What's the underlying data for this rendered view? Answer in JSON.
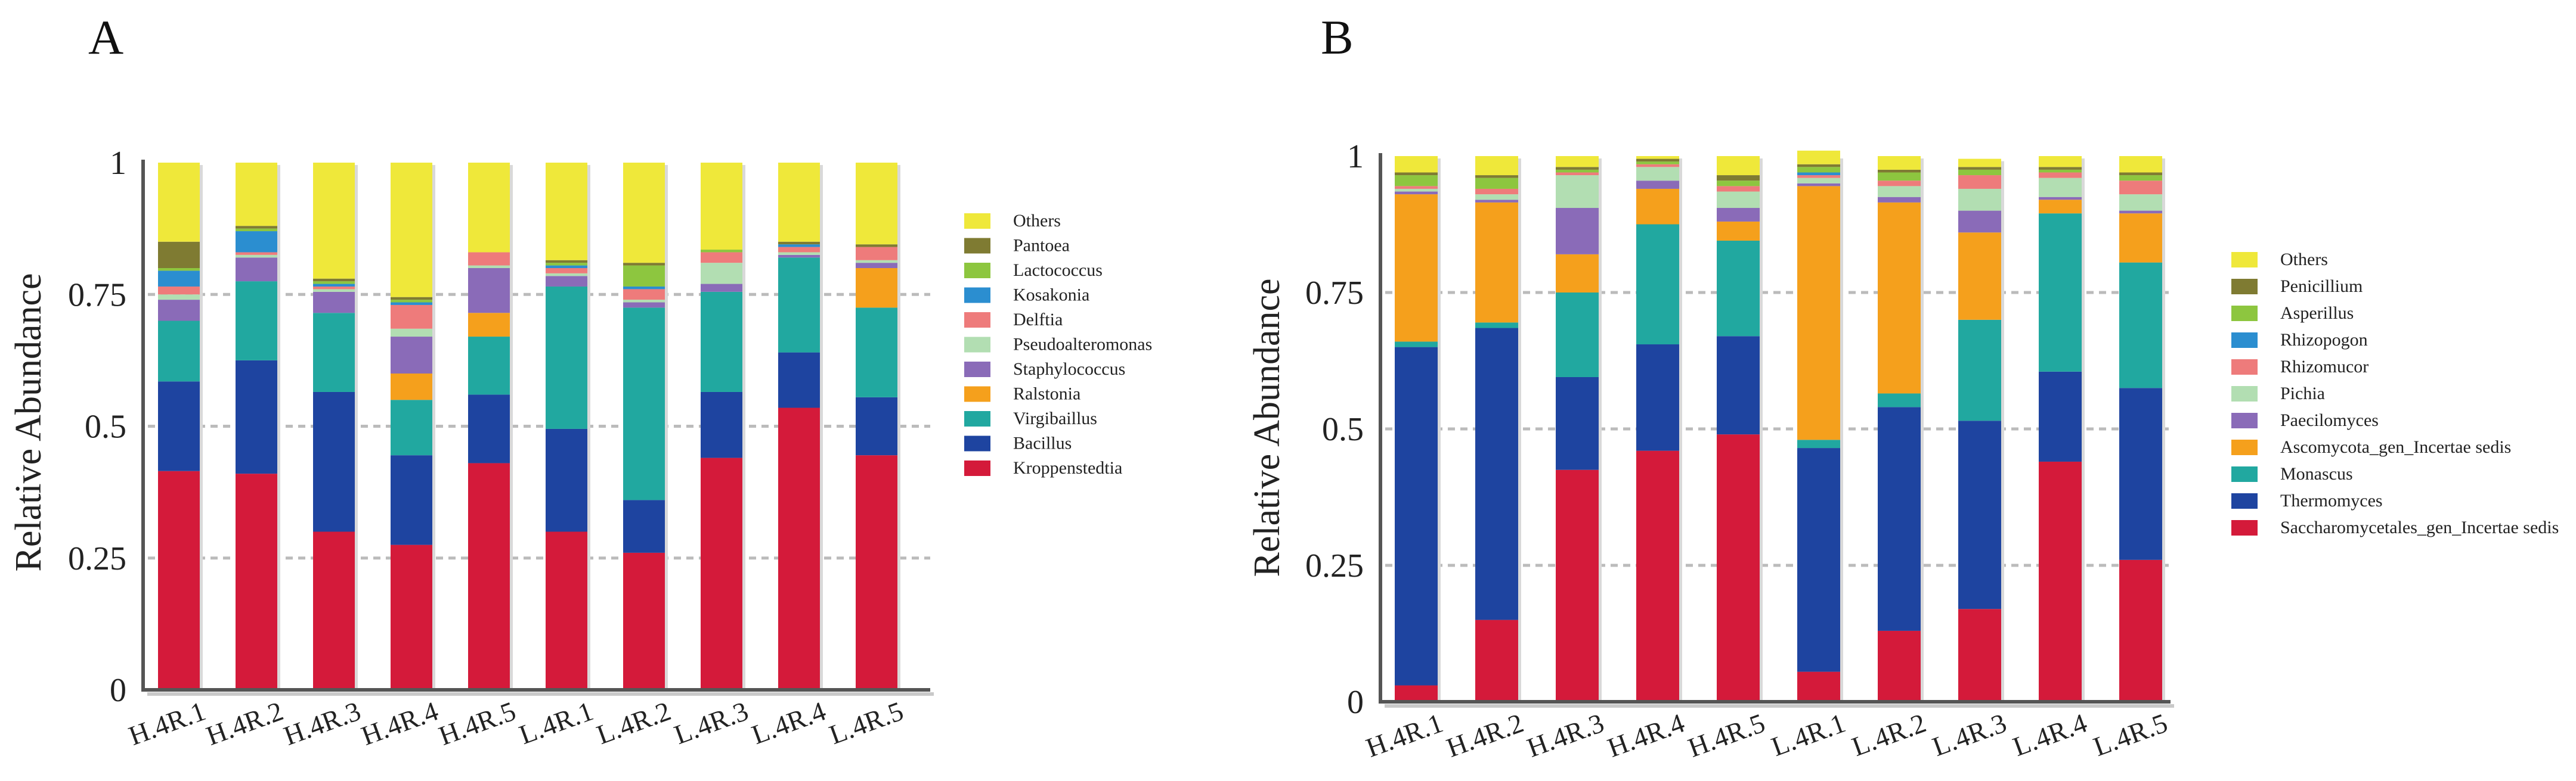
{
  "chart_data": [
    {
      "panel": "A",
      "type": "bar",
      "stacked": true,
      "ylabel": "Relative Abundance",
      "ylim": [
        0,
        1
      ],
      "yticks": [
        "0",
        "0.25",
        "0.5",
        "0.75",
        "1"
      ],
      "grid": "dashed horizontal",
      "legend_position": "right",
      "categories": [
        "H.4R.1",
        "H.4R.2",
        "H.4R.3",
        "H.4R.4",
        "H.4R.5",
        "L.4R.1",
        "L.4R.2",
        "L.4R.3",
        "L.4R.4",
        "L.4R.5"
      ],
      "series": [
        {
          "name": "Kroppenstedtia",
          "color": "#D41A3A",
          "values": [
            0.415,
            0.41,
            0.3,
            0.275,
            0.43,
            0.3,
            0.26,
            0.44,
            0.535,
            0.445
          ]
        },
        {
          "name": "Bacillus",
          "color": "#1E44A0",
          "values": [
            0.17,
            0.215,
            0.265,
            0.17,
            0.13,
            0.195,
            0.1,
            0.125,
            0.105,
            0.11
          ]
        },
        {
          "name": "Virgibaillus",
          "color": "#21A8A0",
          "values": [
            0.115,
            0.15,
            0.15,
            0.105,
            0.11,
            0.27,
            0.365,
            0.19,
            0.18,
            0.17
          ]
        },
        {
          "name": "Ralstonia",
          "color": "#F5A01C",
          "values": [
            0.0,
            0.0,
            0.0,
            0.05,
            0.045,
            0.0,
            0.0,
            0.0,
            0.0,
            0.075
          ]
        },
        {
          "name": "Staphylococcus",
          "color": "#8A6BB8",
          "values": [
            0.04,
            0.045,
            0.04,
            0.07,
            0.085,
            0.02,
            0.01,
            0.015,
            0.005,
            0.01
          ]
        },
        {
          "name": "Pseudoalteromonas",
          "color": "#B2DEB2",
          "values": [
            0.01,
            0.005,
            0.005,
            0.015,
            0.005,
            0.005,
            0.005,
            0.04,
            0.005,
            0.005
          ]
        },
        {
          "name": "Delftia",
          "color": "#EE7B7B",
          "values": [
            0.015,
            0.005,
            0.005,
            0.045,
            0.025,
            0.01,
            0.02,
            0.02,
            0.01,
            0.025
          ]
        },
        {
          "name": "Kosakonia",
          "color": "#2B8ED0",
          "values": [
            0.03,
            0.04,
            0.005,
            0.005,
            0.0,
            0.005,
            0.005,
            0.0,
            0.005,
            0.0
          ]
        },
        {
          "name": "Lactococcus",
          "color": "#8DC63F",
          "values": [
            0.005,
            0.005,
            0.005,
            0.005,
            0.0,
            0.005,
            0.04,
            0.005,
            0.0,
            0.0
          ]
        },
        {
          "name": "Pantoea",
          "color": "#7F7B32",
          "values": [
            0.05,
            0.005,
            0.005,
            0.005,
            0.0,
            0.005,
            0.005,
            0.0,
            0.005,
            0.005
          ]
        },
        {
          "name": "Others",
          "color": "#EFE83A",
          "values": [
            0.15,
            0.12,
            0.22,
            0.255,
            0.17,
            0.185,
            0.19,
            0.165,
            0.15,
            0.155
          ]
        }
      ]
    },
    {
      "panel": "B",
      "type": "bar",
      "stacked": true,
      "ylabel": "Relative Abundance",
      "ylim": [
        0,
        1
      ],
      "yticks": [
        "0",
        "0.25",
        "0.5",
        "0.75",
        "1"
      ],
      "grid": "dashed horizontal",
      "legend_position": "right",
      "categories": [
        "H.4R.1",
        "H.4R.2",
        "H.4R.3",
        "H.4R.4",
        "H.4R.5",
        "L.4R.1",
        "L.4R.2",
        "L.4R.3",
        "L.4R.4",
        "L.4R.5"
      ],
      "series": [
        {
          "name": "Saccharomycetales_gen_Incertae sedis",
          "color": "#D41A3A",
          "values": [
            0.03,
            0.15,
            0.425,
            0.46,
            0.49,
            0.055,
            0.13,
            0.17,
            0.44,
            0.26
          ]
        },
        {
          "name": "Thermomyces",
          "color": "#1E44A0",
          "values": [
            0.62,
            0.535,
            0.17,
            0.195,
            0.18,
            0.41,
            0.41,
            0.345,
            0.165,
            0.315
          ]
        },
        {
          "name": "Monascus",
          "color": "#21A8A0",
          "values": [
            0.01,
            0.01,
            0.155,
            0.22,
            0.175,
            0.015,
            0.025,
            0.185,
            0.29,
            0.23
          ]
        },
        {
          "name": "Ascomycota_gen_Incertae sedis",
          "color": "#F5A01C",
          "values": [
            0.27,
            0.22,
            0.07,
            0.065,
            0.035,
            0.465,
            0.35,
            0.16,
            0.025,
            0.09
          ]
        },
        {
          "name": "Paecilomyces",
          "color": "#8A6BB8",
          "values": [
            0.005,
            0.005,
            0.085,
            0.015,
            0.025,
            0.005,
            0.01,
            0.04,
            0.005,
            0.005
          ]
        },
        {
          "name": "Pichia",
          "color": "#B2DEB2",
          "values": [
            0.005,
            0.01,
            0.06,
            0.025,
            0.03,
            0.01,
            0.02,
            0.04,
            0.035,
            0.03
          ]
        },
        {
          "name": "Rhizomucor",
          "color": "#EE7B7B",
          "values": [
            0.005,
            0.01,
            0.005,
            0.005,
            0.01,
            0.005,
            0.01,
            0.025,
            0.01,
            0.025
          ]
        },
        {
          "name": "Rhizopogon",
          "color": "#2B8ED0",
          "values": [
            0.0,
            0.0,
            0.0,
            0.0,
            0.0,
            0.005,
            0.0,
            0.0,
            0.0,
            0.0
          ]
        },
        {
          "name": "Asperillus",
          "color": "#8DC63F",
          "values": [
            0.02,
            0.02,
            0.005,
            0.005,
            0.01,
            0.01,
            0.015,
            0.01,
            0.005,
            0.01
          ]
        },
        {
          "name": "Penicillium",
          "color": "#7F7B32",
          "values": [
            0.005,
            0.005,
            0.005,
            0.005,
            0.01,
            0.005,
            0.005,
            0.005,
            0.005,
            0.005
          ]
        },
        {
          "name": "Others",
          "color": "#EFE83A",
          "values": [
            0.03,
            0.035,
            0.02,
            0.005,
            0.035,
            0.025,
            0.025,
            0.015,
            0.02,
            0.03
          ]
        }
      ]
    }
  ],
  "panels": [
    {
      "letter": "A",
      "ylabel": "Relative Abundance",
      "legend_title": ""
    },
    {
      "letter": "B",
      "ylabel": "Relative Abundance",
      "legend_title": ""
    }
  ]
}
